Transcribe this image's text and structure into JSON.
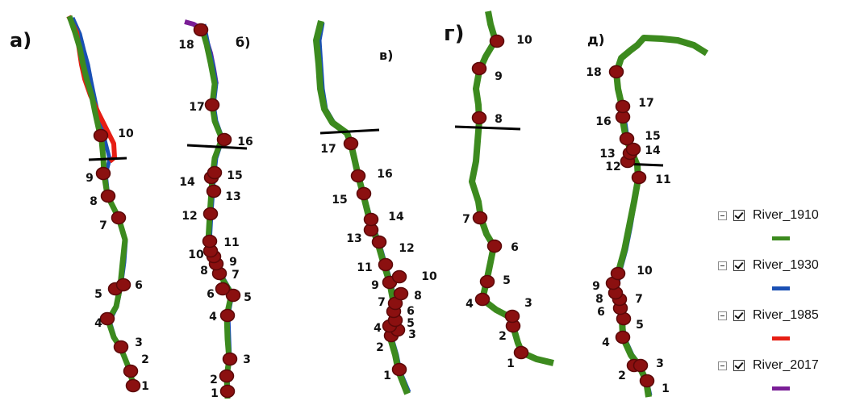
{
  "colors": {
    "River_1910": "#3c8a1e",
    "River_1930": "#1a50b4",
    "River_1985": "#e61e14",
    "River_2017": "#7a1e96",
    "point_fill": "#8b1010",
    "point_stroke": "#5a0808",
    "section_line": "#000000"
  },
  "panels": [
    {
      "label": "а)",
      "points": [
        {
          "n": "1",
          "pos": [
            165,
            478
          ],
          "lab": [
            180,
            478
          ]
        },
        {
          "n": "2",
          "pos": [
            162,
            460
          ],
          "lab": [
            180,
            445
          ]
        },
        {
          "n": "3",
          "pos": [
            150,
            430
          ],
          "lab": [
            172,
            424
          ]
        },
        {
          "n": "4",
          "pos": [
            133,
            395
          ],
          "lab": [
            122,
            400
          ]
        },
        {
          "n": "5",
          "pos": [
            143,
            358
          ],
          "lab": [
            122,
            364
          ]
        },
        {
          "n": "6",
          "pos": [
            153,
            353
          ],
          "lab": [
            172,
            353
          ]
        },
        {
          "n": "7",
          "pos": [
            147,
            270
          ],
          "lab": [
            128,
            279
          ]
        },
        {
          "n": "8",
          "pos": [
            134,
            243
          ],
          "lab": [
            116,
            249
          ]
        },
        {
          "n": "9",
          "pos": [
            128,
            215
          ],
          "lab": [
            111,
            220
          ]
        },
        {
          "n": "10",
          "pos": [
            125,
            168
          ],
          "lab": [
            156,
            165
          ]
        }
      ]
    },
    {
      "label": "б)",
      "points": [
        {
          "n": "1",
          "pos": [
            282,
            485
          ],
          "lab": [
            266,
            487
          ]
        },
        {
          "n": "2",
          "pos": [
            281,
            466
          ],
          "lab": [
            265,
            470
          ]
        },
        {
          "n": "3",
          "pos": [
            285,
            445
          ],
          "lab": [
            306,
            445
          ]
        },
        {
          "n": "4",
          "pos": [
            282,
            391
          ],
          "lab": [
            264,
            392
          ]
        },
        {
          "n": "5",
          "pos": [
            289,
            366
          ],
          "lab": [
            307,
            368
          ]
        },
        {
          "n": "6",
          "pos": [
            276,
            358
          ],
          "lab": [
            261,
            364
          ]
        },
        {
          "n": "7",
          "pos": [
            272,
            339
          ],
          "lab": [
            292,
            340
          ]
        },
        {
          "n": "8",
          "pos": [
            268,
            327
          ],
          "lab": [
            253,
            335
          ]
        },
        {
          "n": "9",
          "pos": [
            265,
            318
          ],
          "lab": [
            289,
            324
          ]
        },
        {
          "n": "10",
          "pos": [
            261,
            311
          ],
          "lab": [
            243,
            315
          ]
        },
        {
          "n": "11",
          "pos": [
            260,
            299
          ],
          "lab": [
            287,
            300
          ]
        },
        {
          "n": "12",
          "pos": [
            261,
            265
          ],
          "lab": [
            235,
            267
          ]
        },
        {
          "n": "13",
          "pos": [
            265,
            237
          ],
          "lab": [
            289,
            243
          ]
        },
        {
          "n": "14",
          "pos": [
            262,
            220
          ],
          "lab": [
            232,
            225
          ]
        },
        {
          "n": "15",
          "pos": [
            266,
            214
          ],
          "lab": [
            291,
            217
          ]
        },
        {
          "n": "16",
          "pos": [
            278,
            173
          ],
          "lab": [
            304,
            175
          ]
        },
        {
          "n": "17",
          "pos": [
            263,
            130
          ],
          "lab": [
            244,
            132
          ]
        },
        {
          "n": "18",
          "pos": [
            249,
            37
          ],
          "lab": [
            231,
            55
          ]
        }
      ]
    },
    {
      "label": "в)",
      "points": [
        {
          "n": "1",
          "pos": [
            495,
            458
          ],
          "lab": [
            480,
            465
          ]
        },
        {
          "n": "2",
          "pos": [
            485,
            416
          ],
          "lab": [
            471,
            430
          ]
        },
        {
          "n": "3",
          "pos": [
            493,
            409
          ],
          "lab": [
            511,
            414
          ]
        },
        {
          "n": "4",
          "pos": [
            483,
            404
          ],
          "lab": [
            468,
            406
          ]
        },
        {
          "n": "5",
          "pos": [
            490,
            397
          ],
          "lab": [
            509,
            400
          ]
        },
        {
          "n": "6",
          "pos": [
            488,
            386
          ],
          "lab": [
            509,
            385
          ]
        },
        {
          "n": "7",
          "pos": [
            490,
            376
          ],
          "lab": [
            473,
            374
          ]
        },
        {
          "n": "8",
          "pos": [
            497,
            364
          ],
          "lab": [
            518,
            366
          ]
        },
        {
          "n": "9",
          "pos": [
            483,
            350
          ],
          "lab": [
            465,
            353
          ]
        },
        {
          "n": "10",
          "pos": [
            495,
            343
          ],
          "lab": [
            532,
            342
          ]
        },
        {
          "n": "11",
          "pos": [
            478,
            328
          ],
          "lab": [
            452,
            331
          ]
        },
        {
          "n": "12",
          "pos": [
            470,
            300
          ],
          "lab": [
            504,
            307
          ]
        },
        {
          "n": "13",
          "pos": [
            460,
            285
          ],
          "lab": [
            439,
            295
          ]
        },
        {
          "n": "14",
          "pos": [
            460,
            272
          ],
          "lab": [
            491,
            268
          ]
        },
        {
          "n": "15",
          "pos": [
            451,
            240
          ],
          "lab": [
            421,
            247
          ]
        },
        {
          "n": "16",
          "pos": [
            444,
            218
          ],
          "lab": [
            477,
            215
          ]
        },
        {
          "n": "17",
          "pos": [
            435,
            178
          ],
          "lab": [
            407,
            184
          ]
        }
      ]
    },
    {
      "label": "г)",
      "points": [
        {
          "n": "1",
          "pos": [
            646,
            437
          ],
          "lab": [
            633,
            450
          ]
        },
        {
          "n": "2",
          "pos": [
            636,
            404
          ],
          "lab": [
            623,
            416
          ]
        },
        {
          "n": "3",
          "pos": [
            635,
            392
          ],
          "lab": [
            655,
            375
          ]
        },
        {
          "n": "4",
          "pos": [
            598,
            371
          ],
          "lab": [
            582,
            376
          ]
        },
        {
          "n": "5",
          "pos": [
            604,
            349
          ],
          "lab": [
            628,
            347
          ]
        },
        {
          "n": "6",
          "pos": [
            613,
            305
          ],
          "lab": [
            638,
            306
          ]
        },
        {
          "n": "7",
          "pos": [
            595,
            270
          ],
          "lab": [
            578,
            271
          ]
        },
        {
          "n": "8",
          "pos": [
            594,
            146
          ],
          "lab": [
            618,
            147
          ]
        },
        {
          "n": "9",
          "pos": [
            594,
            85
          ],
          "lab": [
            618,
            94
          ]
        },
        {
          "n": "10",
          "pos": [
            616,
            51
          ],
          "lab": [
            650,
            49
          ]
        }
      ]
    },
    {
      "label": "д)",
      "points": [
        {
          "n": "1",
          "pos": [
            802,
            472
          ],
          "lab": [
            825,
            481
          ]
        },
        {
          "n": "2",
          "pos": [
            786,
            453
          ],
          "lab": [
            771,
            465
          ]
        },
        {
          "n": "3",
          "pos": [
            794,
            453
          ],
          "lab": [
            818,
            450
          ]
        },
        {
          "n": "4",
          "pos": [
            772,
            418
          ],
          "lab": [
            751,
            424
          ]
        },
        {
          "n": "5",
          "pos": [
            773,
            395
          ],
          "lab": [
            793,
            402
          ]
        },
        {
          "n": "6",
          "pos": [
            769,
            382
          ],
          "lab": [
            745,
            386
          ]
        },
        {
          "n": "7",
          "pos": [
            768,
            371
          ],
          "lab": [
            792,
            370
          ]
        },
        {
          "n": "8",
          "pos": [
            763,
            363
          ],
          "lab": [
            743,
            370
          ]
        },
        {
          "n": "9",
          "pos": [
            760,
            351
          ],
          "lab": [
            739,
            354
          ]
        },
        {
          "n": "10",
          "pos": [
            766,
            339
          ],
          "lab": [
            799,
            335
          ]
        },
        {
          "n": "11",
          "pos": [
            792,
            220
          ],
          "lab": [
            822,
            222
          ]
        },
        {
          "n": "12",
          "pos": [
            778,
            200
          ],
          "lab": [
            760,
            206
          ]
        },
        {
          "n": "13",
          "pos": [
            781,
            190
          ],
          "lab": [
            753,
            190
          ]
        },
        {
          "n": "14",
          "pos": [
            785,
            185
          ],
          "lab": [
            809,
            186
          ]
        },
        {
          "n": "15",
          "pos": [
            777,
            172
          ],
          "lab": [
            809,
            168
          ]
        },
        {
          "n": "16",
          "pos": [
            772,
            145
          ],
          "lab": [
            748,
            150
          ]
        },
        {
          "n": "17",
          "pos": [
            772,
            132
          ],
          "lab": [
            801,
            127
          ]
        },
        {
          "n": "18",
          "pos": [
            764,
            89
          ],
          "lab": [
            736,
            89
          ]
        }
      ]
    }
  ],
  "legend": {
    "items": [
      {
        "name": "River_1910",
        "checked": true,
        "swatch": "#3c8a1e"
      },
      {
        "name": "River_1930",
        "checked": true,
        "swatch": "#1a50b4"
      },
      {
        "name": "River_1985",
        "checked": true,
        "swatch": "#e61e14"
      },
      {
        "name": "River_2017",
        "checked": true,
        "swatch": "#7a1e96"
      }
    ]
  }
}
